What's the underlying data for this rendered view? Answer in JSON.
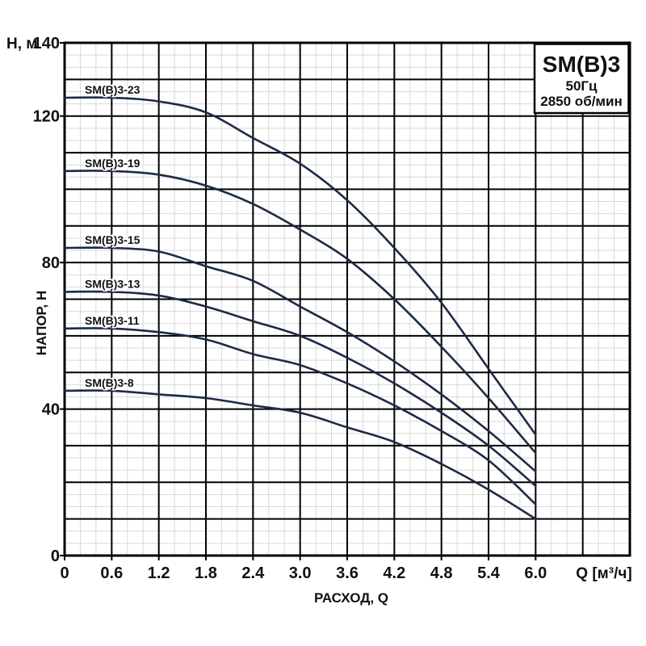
{
  "title_box": {
    "model": "SM(B)3",
    "frequency": "50Гц",
    "speed": "2850 об/мин"
  },
  "axes": {
    "y_corner_label": "Н, м",
    "y_axis_title": "НАПОР, Н",
    "x_axis_title": "РАСХОД, Q",
    "x_unit_label": "Q [м³/ч]",
    "y_tick_labels": [
      "140",
      "120",
      "80",
      "40",
      "0"
    ],
    "y_tick_values": [
      140,
      120,
      80,
      40,
      0
    ],
    "x_tick_labels": [
      "0",
      "0.6",
      "1.2",
      "1.8",
      "2.4",
      "3.0",
      "3.6",
      "4.2",
      "4.8",
      "5.4",
      "6.0"
    ],
    "x_tick_values": [
      0,
      0.6,
      1.2,
      1.8,
      2.4,
      3.0,
      3.6,
      4.2,
      4.8,
      5.4,
      6.0
    ]
  },
  "chart_data": {
    "type": "line",
    "title": "SM(B)3 50Гц 2850 об/мин",
    "xlabel": "РАСХОД, Q [м³/ч]",
    "ylabel": "НАПОР, Н [м]",
    "xlim": [
      0,
      7.2
    ],
    "ylim": [
      0,
      140
    ],
    "x_major_step": 0.6,
    "y_major_step": 10,
    "grid": "major+minor (minor = 1/3 subdivisions)",
    "legend_position": "labels beside curve starts",
    "x": [
      0,
      0.6,
      1.2,
      1.8,
      2.4,
      3.0,
      3.6,
      4.2,
      4.8,
      5.4,
      6.0
    ],
    "series": [
      {
        "name": "SM(B)3-23",
        "values": [
          125,
          125,
          124,
          121,
          114,
          107,
          97,
          84,
          69,
          51,
          33
        ]
      },
      {
        "name": "SM(B)3-19",
        "values": [
          105,
          105,
          104,
          101,
          96,
          89,
          81,
          70,
          57,
          43,
          28
        ]
      },
      {
        "name": "SM(B)3-15",
        "values": [
          84,
          84,
          83,
          79,
          75,
          68,
          61,
          53,
          44,
          34,
          23
        ]
      },
      {
        "name": "SM(B)3-13",
        "values": [
          72,
          72,
          71,
          68,
          64,
          60,
          54,
          47,
          39,
          30,
          19
        ]
      },
      {
        "name": "SM(B)3-11",
        "values": [
          62,
          62,
          61,
          59,
          55,
          52,
          47,
          41,
          34,
          26,
          14
        ]
      },
      {
        "name": "SM(B)3-8",
        "values": [
          45,
          45,
          44,
          43,
          41,
          39,
          35,
          31,
          25,
          18,
          10
        ]
      }
    ],
    "colors": {
      "curve": "#1c2b45",
      "grid_major": "#000000",
      "grid_minor": "#d9d9d9",
      "text": "#111111",
      "background": "#ffffff"
    }
  }
}
